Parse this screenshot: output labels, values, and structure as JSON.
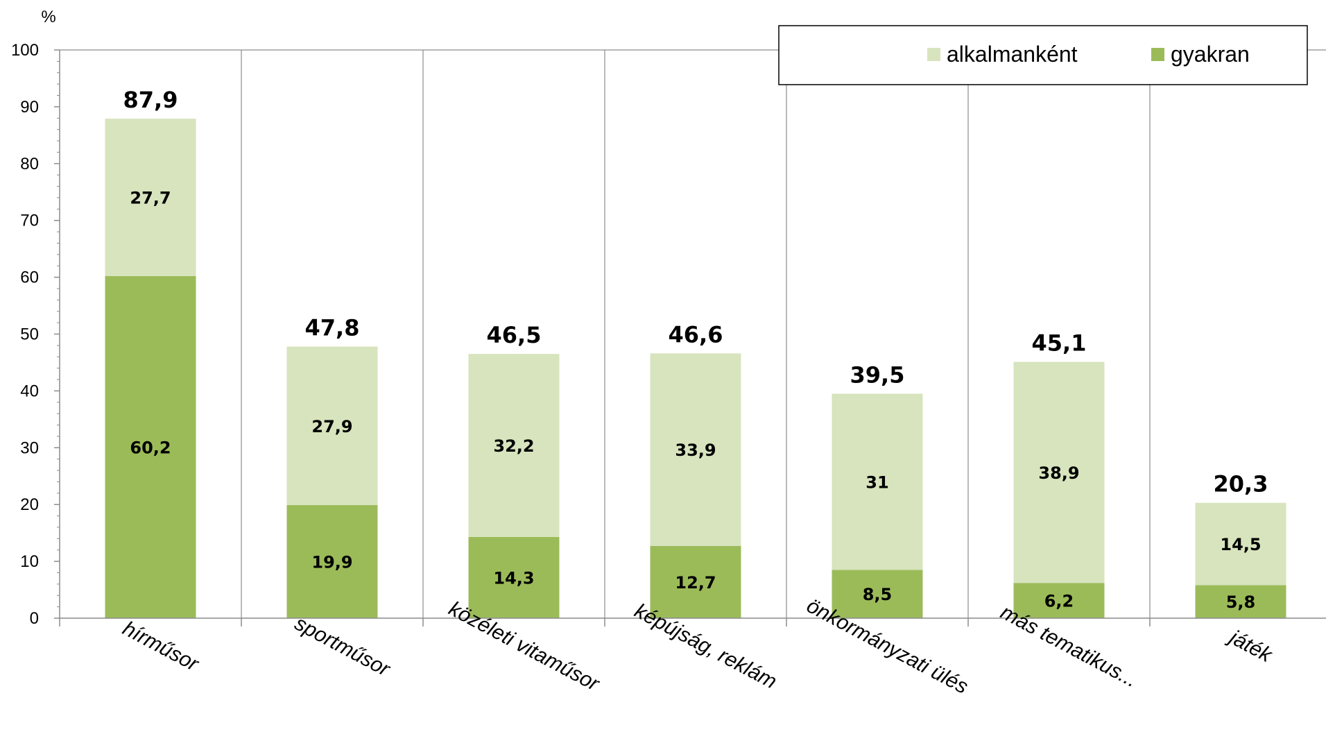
{
  "chart_data": {
    "type": "bar",
    "stacked": true,
    "y_unit": "%",
    "ylim": [
      0,
      100
    ],
    "yticks": [
      0,
      10,
      20,
      30,
      40,
      50,
      60,
      70,
      80,
      90,
      100
    ],
    "grid": "vertical lines between categories",
    "legend_position": "top-right",
    "categories": [
      "hírműsor",
      "sportműsor",
      "közéleti vitaműsor",
      "képújság, reklám",
      "önkormányzati ülés",
      "más tematikus...",
      "játék"
    ],
    "series": [
      {
        "name": "gyakran",
        "color": "#9bbb59",
        "values": [
          60.2,
          19.9,
          14.3,
          12.7,
          8.5,
          6.2,
          5.8
        ],
        "labels": [
          "60,2",
          "19,9",
          "14,3",
          "12,7",
          "8,5",
          "6,2",
          "5,8"
        ]
      },
      {
        "name": "alkalmanként",
        "color": "#d7e4bd",
        "values": [
          27.7,
          27.9,
          32.2,
          33.9,
          31,
          38.9,
          14.5
        ],
        "labels": [
          "27,7",
          "27,9",
          "32,2",
          "33,9",
          "31",
          "38,9",
          "14,5"
        ]
      }
    ],
    "totals": [
      87.9,
      47.8,
      46.5,
      46.6,
      39.5,
      45.1,
      20.3
    ],
    "total_labels": [
      "87,9",
      "47,8",
      "46,5",
      "46,6",
      "39,5",
      "45,1",
      "20,3"
    ]
  }
}
